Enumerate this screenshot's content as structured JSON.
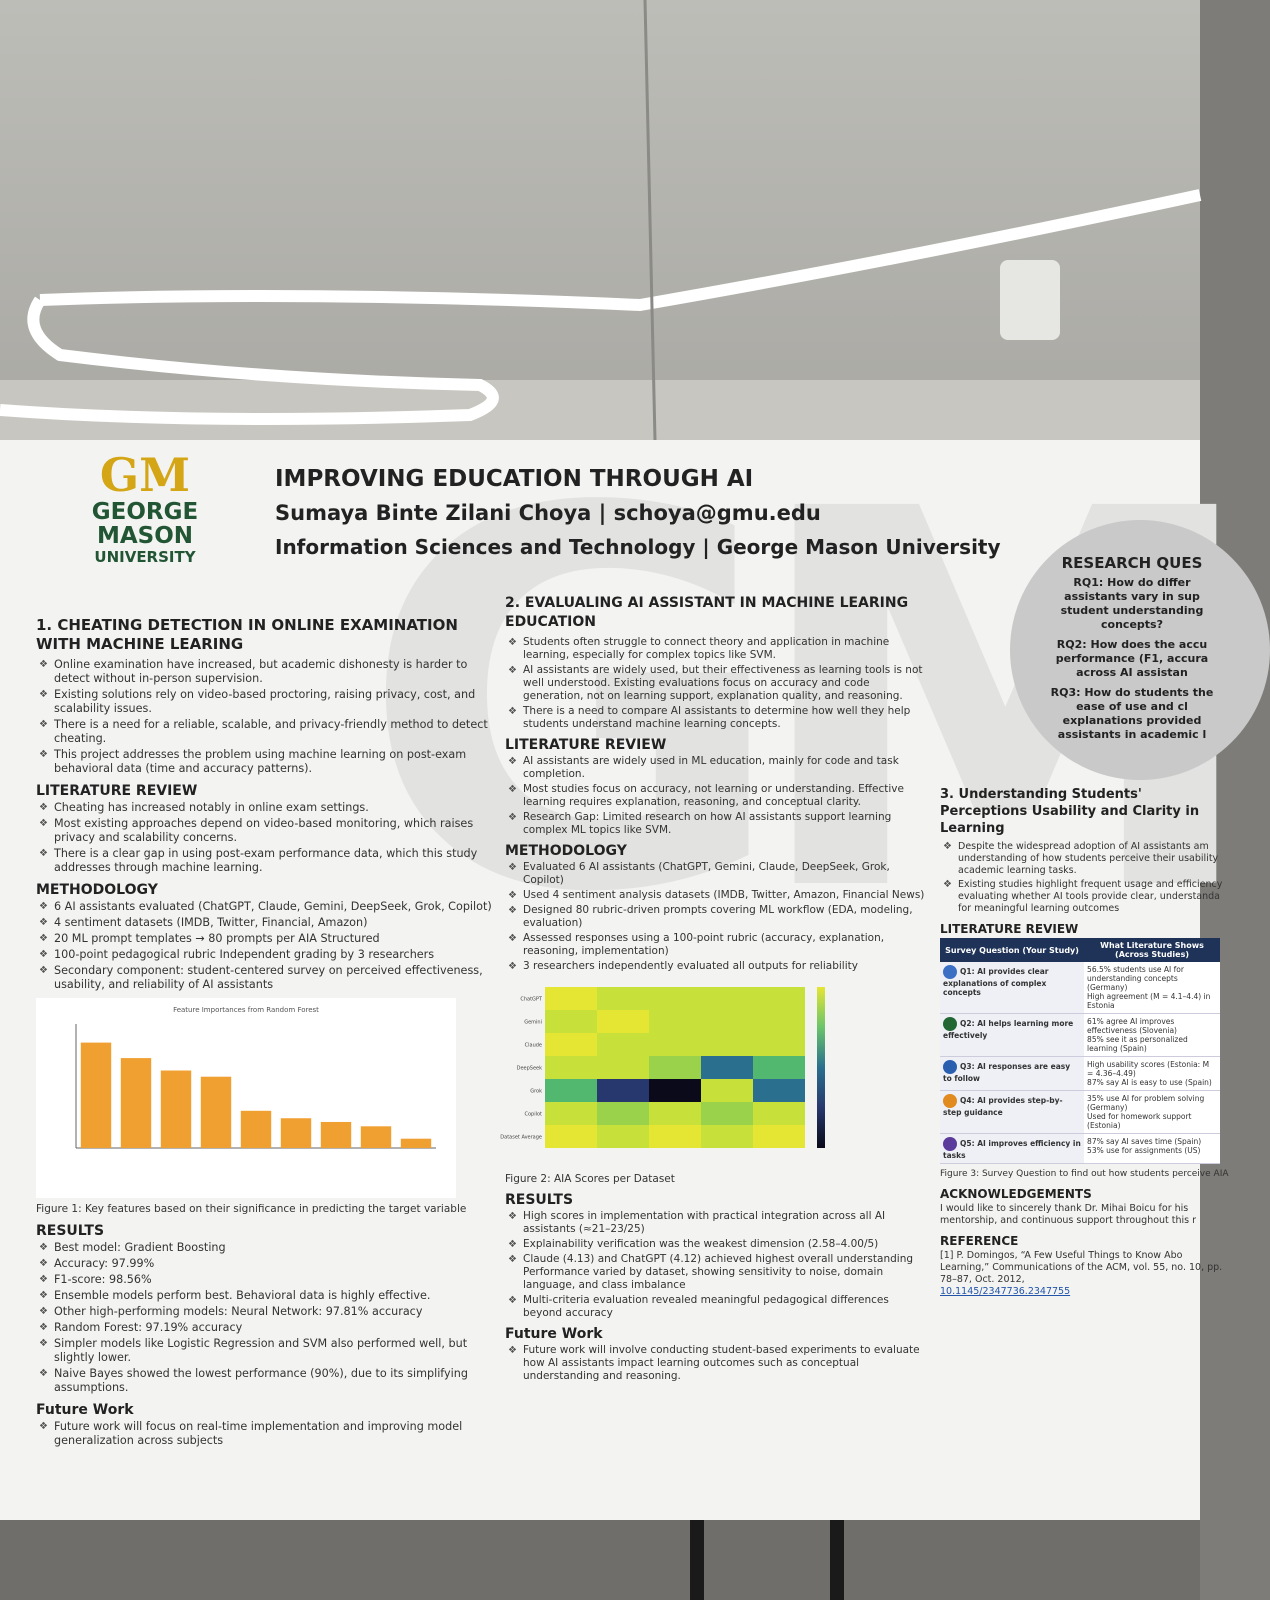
{
  "header": {
    "logo": "GM",
    "university": [
      "GEORGE",
      "MASON",
      "UNIVERSITY"
    ],
    "title": "IMPROVING EDUCATION THROUGH AI",
    "author": "Sumaya Binte Zilani Choya | schoya@gmu.edu",
    "affiliation": "Information Sciences and Technology | George Mason University"
  },
  "section1": {
    "title": "1. CHEATING DETECTION IN ONLINE EXAMINATION WITH MACHINE LEARING",
    "intro": [
      "Online examination have increased, but academic dishonesty is harder to detect without in-person supervision.",
      "Existing solutions rely on video-based proctoring, raising privacy, cost, and scalability issues.",
      "There is a need for a reliable, scalable, and privacy-friendly method to detect cheating.",
      "This project addresses the problem using machine learning on post-exam behavioral data (time and accuracy patterns)."
    ],
    "lit_title": "LITERATURE REVIEW",
    "lit": [
      "Cheating has increased notably in online exam settings.",
      "Most existing approaches depend on video-based monitoring, which raises privacy and scalability concerns.",
      "There is a clear gap in using post-exam performance data, which this study addresses through machine learning."
    ],
    "method_title": "METHODOLOGY",
    "method": [
      "6 AI assistants evaluated (ChatGPT, Claude, Gemini, DeepSeek, Grok, Copilot)",
      "4 sentiment datasets (IMDB, Twitter, Financial, Amazon)",
      "20 ML prompt templates → 80 prompts per AIA Structured",
      "100-point pedagogical rubric Independent grading by 3 researchers",
      "Secondary component: student-centered survey on perceived effectiveness, usability, and reliability of AI assistants"
    ],
    "figure": {
      "title": "Feature Importances from Random Forest",
      "values": [
        0.17,
        0.145,
        0.125,
        0.115,
        0.06,
        0.048,
        0.042,
        0.035,
        0.015
      ],
      "ylim": [
        0,
        0.2
      ],
      "color": "#f0a030"
    },
    "caption": "Figure 1: Key features based on their significance in predicting the target variable",
    "results_title": "RESULTS",
    "results": [
      "Best model: Gradient Boosting",
      "Accuracy: 97.99%",
      "F1-score: 98.56%",
      "Ensemble models perform best. Behavioral data is highly effective.",
      "Other high-performing models: Neural Network: 97.81% accuracy",
      "Random Forest: 97.19% accuracy",
      "Simpler models like Logistic Regression and SVM also performed well, but slightly lower.",
      "Naive Bayes showed the lowest performance (90%), due to its simplifying assumptions."
    ],
    "future_title": "Future Work",
    "future": [
      "Future work will focus on real-time implementation and improving model generalization across subjects"
    ]
  },
  "section2": {
    "title": "2. EVALUALING AI ASSISTANT IN MACHINE LEARING EDUCATION",
    "intro": [
      "Students often struggle to connect theory and application in machine learning, especially for complex topics like SVM.",
      "AI assistants are widely used, but their effectiveness as learning tools is not well understood. Existing evaluations focus on accuracy and code generation, not on learning support, explanation quality, and reasoning.",
      "There is a need to compare AI assistants to determine how well they help students understand machine learning concepts."
    ],
    "lit_title": "LITERATURE REVIEW",
    "lit": [
      "AI assistants are widely used in ML education, mainly for code and task completion.",
      "Most studies focus on accuracy, not learning or understanding. Effective learning requires explanation, reasoning, and conceptual clarity.",
      "Research Gap: Limited research on how AI assistants support learning complex ML topics like SVM."
    ],
    "method_title": "METHODOLOGY",
    "method": [
      "Evaluated 6 AI assistants (ChatGPT, Gemini, Claude, DeepSeek, Grok, Copilot)",
      "Used 4 sentiment analysis datasets (IMDB, Twitter, Amazon, Financial News)",
      "Designed 80 rubric-driven prompts covering ML workflow (EDA, modeling, evaluation)",
      "Assessed responses using a 100-point rubric (accuracy, explanation, reasoning, implementation)",
      "3 researchers independently evaluated all outputs for reliability"
    ],
    "heatmap_rows": [
      "ChatGPT",
      "Gemini",
      "Claude",
      "DeepSeek",
      "Grok",
      "Copilot",
      "Dataset Average"
    ],
    "caption": "Figure 2: AIA Scores per Dataset",
    "results_title": "RESULTS",
    "results": [
      "High scores in implementation with practical integration across all AI assistants (≈21–23/25)",
      "Explainability verification was the weakest dimension (2.58–4.00/5)",
      "Claude (4.13) and ChatGPT (4.12) achieved highest overall understanding Performance varied by dataset, showing sensitivity to noise, domain language, and class imbalance",
      "Multi-criteria evaluation revealed meaningful pedagogical differences beyond accuracy"
    ],
    "future_title": "Future Work",
    "future": [
      "Future work will involve conducting student-based experiments to evaluate how AI assistants impact learning outcomes such as conceptual understanding and reasoning."
    ]
  },
  "research_questions": {
    "title": "RESEARCH QUES",
    "items": [
      "RQ1: How do differ assistants vary in sup student understanding concepts?",
      "RQ2: How does the accu performance (F1, accura across AI assistan",
      "RQ3: How do students the ease of use and cl explanations provided assistants in academic l"
    ]
  },
  "section3": {
    "title": "3. Understanding Students' Perceptions Usability and Clarity in Learning",
    "intro": [
      "Despite the widespread adoption of AI assistants am understanding of how students perceive their usability academic learning tasks.",
      "Existing studies highlight frequent usage and efficiency evaluating whether AI tools provide clear, understanda for meaningful learning outcomes"
    ],
    "lit_title": "LITERATURE REVIEW",
    "table": {
      "headers": [
        "Survey Question (Your Study)",
        "What Literature Shows (Across Studies)"
      ],
      "rows": [
        {
          "question": "Q1: AI provides clear explanations of complex concepts",
          "findings": [
            "56.5% students use AI for understanding concepts (Germany)",
            "High agreement (M = 4.1–4.4) in Estonia"
          ]
        },
        {
          "question": "Q2: AI helps learning more effectively",
          "findings": [
            "61% agree AI improves effectiveness (Slovenia)",
            "85% see it as personalized learning (Spain)"
          ]
        },
        {
          "question": "Q3: AI responses are easy to follow",
          "findings": [
            "High usability scores (Estonia: M = 4.36–4.49)",
            "87% say AI is easy to use (Spain)"
          ]
        },
        {
          "question": "Q4: AI provides step-by-step guidance",
          "findings": [
            "35% use AI for problem solving (Germany)",
            "Used for homework support (Estonia)"
          ]
        },
        {
          "question": "Q5: AI improves efficiency in tasks",
          "findings": [
            "87% say AI saves time (Spain)",
            "53% use for assignments (US)"
          ]
        }
      ]
    },
    "caption": "Figure 3: Survey Question to find out how students perceive AIA",
    "ack_title": "ACKNOWLEDGEMENTS",
    "ack": "I would like to sincerely thank Dr. Mihai Boicu for his mentorship, and continuous support throughout this r",
    "ref_title": "REFERENCE",
    "ref": "[1] P. Domingos, “A Few Useful Things to Know Abo Learning,” Communications of the ACM, vol. 55, no. 10, pp. 78–87, Oct. 2012,",
    "doi": "10.1145/2347736.2347755"
  }
}
